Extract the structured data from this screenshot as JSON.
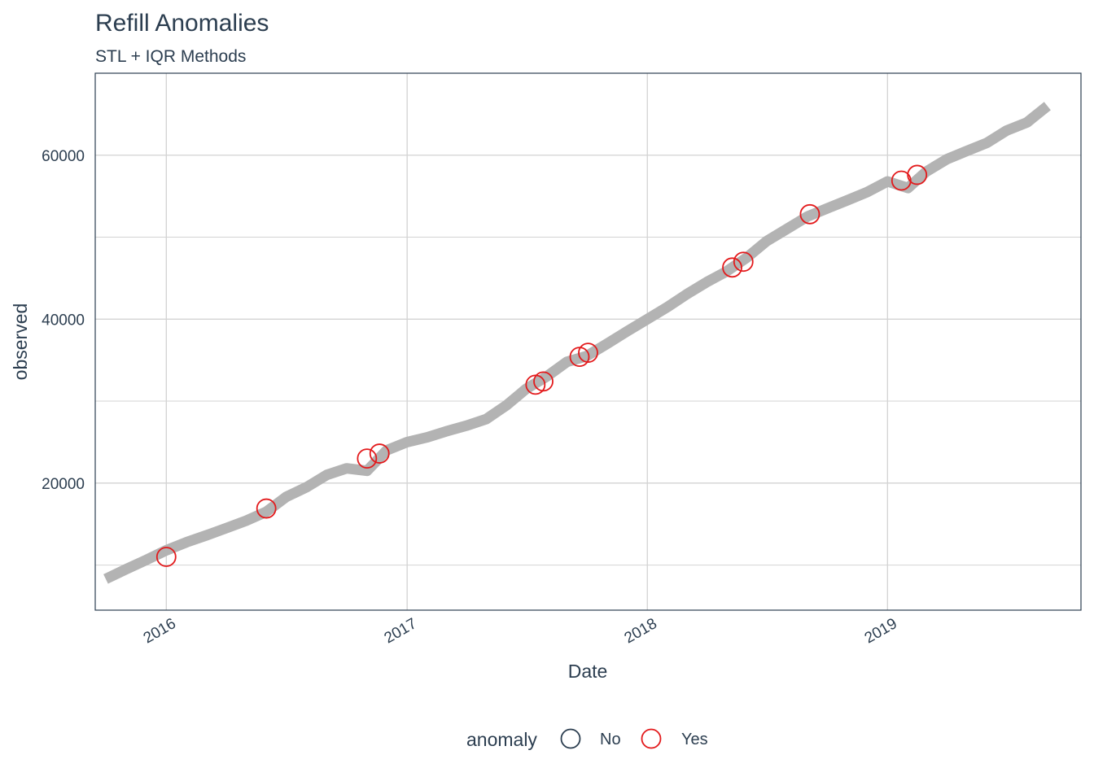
{
  "chart_data": {
    "type": "line",
    "title": "Refill Anomalies",
    "subtitle": "STL + IQR Methods",
    "xlabel": "Date",
    "ylabel": "observed",
    "x_axis": {
      "type": "date",
      "range": [
        "2015-09-15",
        "2019-10-22"
      ],
      "ticks": [
        {
          "value": "2016-01-01",
          "label": "2016"
        },
        {
          "value": "2017-01-01",
          "label": "2017"
        },
        {
          "value": "2018-01-01",
          "label": "2018"
        },
        {
          "value": "2019-01-01",
          "label": "2019"
        }
      ]
    },
    "y_axis": {
      "range": [
        4500,
        70000
      ],
      "ticks": [
        {
          "value": 20000,
          "label": "20000"
        },
        {
          "value": 40000,
          "label": "40000"
        },
        {
          "value": 60000,
          "label": "60000"
        }
      ],
      "minor_gridlines": [
        10000,
        30000,
        50000
      ]
    },
    "grid": true,
    "series": [
      {
        "color": "#b3b3b3",
        "points": [
          [
            "2015-10-01",
            8300
          ],
          [
            "2015-11-01",
            9500
          ],
          [
            "2015-12-01",
            10600
          ],
          [
            "2016-01-01",
            11800
          ],
          [
            "2016-02-01",
            12800
          ],
          [
            "2016-03-01",
            13600
          ],
          [
            "2016-04-01",
            14500
          ],
          [
            "2016-05-01",
            15400
          ],
          [
            "2016-06-01",
            16500
          ],
          [
            "2016-07-01",
            18300
          ],
          [
            "2016-08-01",
            19500
          ],
          [
            "2016-09-01",
            21000
          ],
          [
            "2016-10-01",
            21800
          ],
          [
            "2016-11-01",
            21500
          ],
          [
            "2016-12-01",
            24000
          ],
          [
            "2017-01-01",
            25000
          ],
          [
            "2017-02-01",
            25600
          ],
          [
            "2017-03-01",
            26300
          ],
          [
            "2017-04-01",
            27000
          ],
          [
            "2017-05-01",
            27800
          ],
          [
            "2017-06-01",
            29500
          ],
          [
            "2017-07-01",
            31500
          ],
          [
            "2017-08-01",
            33000
          ],
          [
            "2017-09-01",
            34800
          ],
          [
            "2017-10-01",
            35500
          ],
          [
            "2017-11-01",
            37000
          ],
          [
            "2017-12-01",
            38500
          ],
          [
            "2018-01-01",
            40000
          ],
          [
            "2018-02-01",
            41500
          ],
          [
            "2018-03-01",
            43000
          ],
          [
            "2018-04-01",
            44500
          ],
          [
            "2018-05-01",
            45800
          ],
          [
            "2018-06-01",
            47500
          ],
          [
            "2018-07-01",
            49500
          ],
          [
            "2018-08-01",
            51000
          ],
          [
            "2018-09-01",
            52500
          ],
          [
            "2018-10-01",
            53500
          ],
          [
            "2018-11-01",
            54500
          ],
          [
            "2018-12-01",
            55500
          ],
          [
            "2019-01-01",
            56800
          ],
          [
            "2019-02-01",
            56000
          ],
          [
            "2019-03-01",
            58000
          ],
          [
            "2019-04-01",
            59500
          ],
          [
            "2019-05-01",
            60500
          ],
          [
            "2019-06-01",
            61500
          ],
          [
            "2019-07-01",
            63000
          ],
          [
            "2019-08-01",
            64000
          ],
          [
            "2019-09-01",
            66000
          ]
        ]
      }
    ],
    "anomalies": [
      {
        "x": "2016-01-01",
        "y": 11000
      },
      {
        "x": "2016-06-01",
        "y": 16900
      },
      {
        "x": "2016-11-01",
        "y": 23000
      },
      {
        "x": "2016-11-20",
        "y": 23600
      },
      {
        "x": "2017-07-15",
        "y": 32000
      },
      {
        "x": "2017-07-27",
        "y": 32400
      },
      {
        "x": "2017-09-20",
        "y": 35400
      },
      {
        "x": "2017-10-03",
        "y": 35900
      },
      {
        "x": "2018-05-10",
        "y": 46300
      },
      {
        "x": "2018-05-27",
        "y": 47000
      },
      {
        "x": "2018-09-05",
        "y": 52800
      },
      {
        "x": "2019-01-22",
        "y": 56900
      },
      {
        "x": "2019-02-15",
        "y": 57600
      }
    ],
    "legend": {
      "title": "anomaly",
      "position": "bottom",
      "items": [
        {
          "label": "No",
          "color": "#2c3e50"
        },
        {
          "label": "Yes",
          "color": "#e31a1c"
        }
      ]
    }
  }
}
